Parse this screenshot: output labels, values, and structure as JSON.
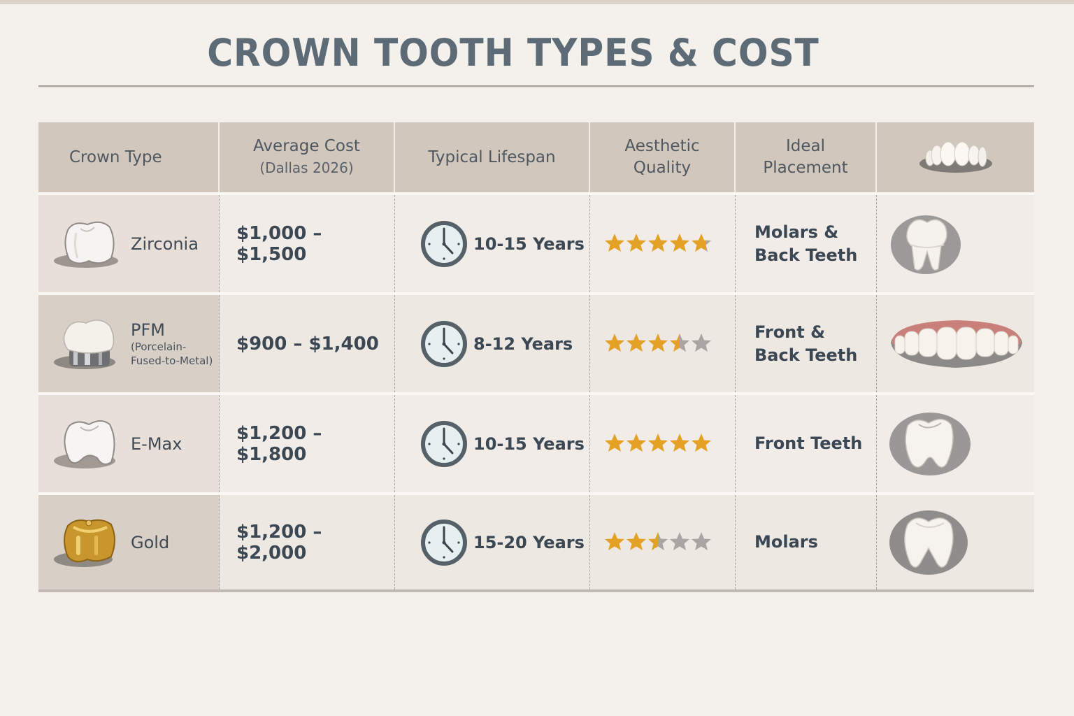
{
  "title": "CROWN TOOTH TYPES & COST",
  "colors": {
    "background": "#f4f0eb",
    "header_bg": "#d1c7bd",
    "title_text": "#5d6b76",
    "body_text": "#3b4753",
    "star_filled": "#e3a225",
    "star_empty": "#a8a5a2"
  },
  "table": {
    "headers": [
      {
        "label": "Crown Type"
      },
      {
        "label": "Average Cost",
        "sub": "(Dallas 2026)"
      },
      {
        "label": "Typical Lifespan"
      },
      {
        "label": "Aesthetic",
        "label2": "Quality"
      },
      {
        "label": "Ideal",
        "label2": "Placement"
      },
      {
        "icon": "teeth-arch-icon"
      }
    ],
    "rows": [
      {
        "crown_type": "Zirconia",
        "crown_icon": "zirconia-crown-icon",
        "cost": "$1,000 – $1,500",
        "lifespan": "10-15 Years",
        "rating": 4.75,
        "placement_line1": "Molars &",
        "placement_line2": "Back Teeth",
        "illustration": "molar-tooth-icon"
      },
      {
        "crown_type": "PFM",
        "crown_type_sub1": "(Porcelain-",
        "crown_type_sub2": "Fused-to-Metal)",
        "crown_icon": "pfm-crown-icon",
        "cost": "$900 – $1,400",
        "lifespan": "8-12 Years",
        "rating": 3.5,
        "placement_line1": "Front &",
        "placement_line2": "Back Teeth",
        "illustration": "upper-teeth-gums-icon"
      },
      {
        "crown_type": "E-Max",
        "crown_icon": "emax-crown-icon",
        "cost": "$1,200 – $1,800",
        "lifespan": "10-15 Years",
        "rating": 5,
        "placement_line1": "Front Teeth",
        "placement_line2": "",
        "illustration": "front-tooth-icon"
      },
      {
        "crown_type": "Gold",
        "crown_icon": "gold-crown-icon",
        "cost": "$1,200 – $2,000",
        "lifespan": "15-20 Years",
        "rating": 2.5,
        "placement_line1": "Molars",
        "placement_line2": "",
        "illustration": "molar-tooth-icon"
      }
    ]
  }
}
